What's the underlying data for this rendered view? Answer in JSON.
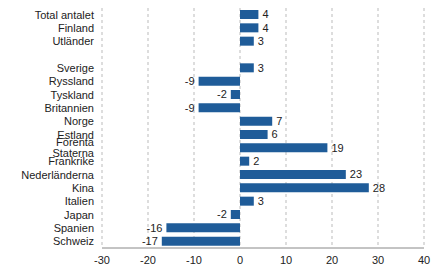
{
  "chart_data": {
    "type": "bar",
    "orientation": "horizontal",
    "categories": [
      "Total antalet",
      "Finland",
      "Utländer",
      null,
      "Sverige",
      "Ryssland",
      "Tyskland",
      "Britannien",
      "Norge",
      "Estland",
      "Förenta Staterna",
      "Frankrike",
      "Nederländerna",
      "Kina",
      "Italien",
      "Japan",
      "Spanien",
      "Schweiz"
    ],
    "values": [
      4,
      4,
      3,
      null,
      3,
      -9,
      -2,
      -9,
      7,
      6,
      19,
      2,
      23,
      28,
      3,
      -2,
      -16,
      -17
    ],
    "color": "#1f5c99",
    "xlim": [
      -30,
      40
    ],
    "xticks": [
      -30,
      -20,
      -10,
      0,
      10,
      20,
      30,
      40
    ],
    "grid": true,
    "data_labels": true
  }
}
